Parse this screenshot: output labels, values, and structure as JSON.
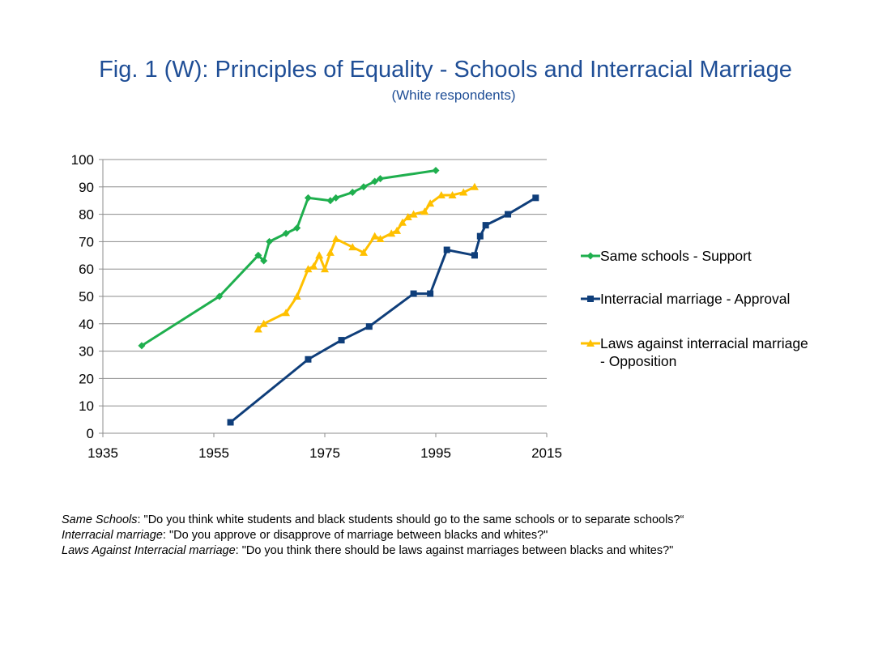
{
  "title": "Fig. 1 (W): Principles of Equality - Schools and Interracial Marriage",
  "subtitle": "(White respondents)",
  "colors": {
    "title": "#1f4e96",
    "same_schools": "#1faf4e",
    "marriage": "#0f3e7a",
    "laws": "#ffc000"
  },
  "chart_data": {
    "type": "line",
    "title": "Fig. 1 (W): Principles of Equality - Schools and Interracial Marriage",
    "subtitle": "(White respondents)",
    "xlabel": "",
    "ylabel": "",
    "xlim": [
      1935,
      2015
    ],
    "ylim": [
      0,
      100
    ],
    "x_ticks": [
      1935,
      1955,
      1975,
      1995,
      2015
    ],
    "y_ticks": [
      0,
      10,
      20,
      30,
      40,
      50,
      60,
      70,
      80,
      90,
      100
    ],
    "grid": true,
    "legend_position": "right",
    "series": [
      {
        "name": "Same schools - Support",
        "marker": "diamond",
        "color": "#1faf4e",
        "points": [
          [
            1942,
            32
          ],
          [
            1956,
            50
          ],
          [
            1963,
            65
          ],
          [
            1964,
            63
          ],
          [
            1965,
            70
          ],
          [
            1968,
            73
          ],
          [
            1970,
            75
          ],
          [
            1972,
            86
          ],
          [
            1976,
            85
          ],
          [
            1977,
            86
          ],
          [
            1980,
            88
          ],
          [
            1982,
            90
          ],
          [
            1984,
            92
          ],
          [
            1985,
            93
          ],
          [
            1995,
            96
          ]
        ]
      },
      {
        "name": "Interracial marriage - Approval",
        "marker": "square",
        "color": "#0f3e7a",
        "points": [
          [
            1958,
            4
          ],
          [
            1972,
            27
          ],
          [
            1978,
            34
          ],
          [
            1983,
            39
          ],
          [
            1991,
            51
          ],
          [
            1994,
            51
          ],
          [
            1997,
            67
          ],
          [
            2002,
            65
          ],
          [
            2003,
            72
          ],
          [
            2004,
            76
          ],
          [
            2008,
            80
          ],
          [
            2013,
            86
          ]
        ]
      },
      {
        "name": "Laws against interracial marriage - Opposition",
        "legend_lines": [
          "Laws against interracial marriage",
          "- Opposition"
        ],
        "marker": "triangle",
        "color": "#ffc000",
        "points": [
          [
            1963,
            38
          ],
          [
            1964,
            40
          ],
          [
            1968,
            44
          ],
          [
            1970,
            50
          ],
          [
            1972,
            60
          ],
          [
            1973,
            61
          ],
          [
            1974,
            65
          ],
          [
            1975,
            60
          ],
          [
            1976,
            66
          ],
          [
            1977,
            71
          ],
          [
            1980,
            68
          ],
          [
            1982,
            66
          ],
          [
            1984,
            72
          ],
          [
            1985,
            71
          ],
          [
            1987,
            73
          ],
          [
            1988,
            74
          ],
          [
            1989,
            77
          ],
          [
            1990,
            79
          ],
          [
            1991,
            80
          ],
          [
            1993,
            81
          ],
          [
            1994,
            84
          ],
          [
            1996,
            87
          ],
          [
            1998,
            87
          ],
          [
            2000,
            88
          ],
          [
            2002,
            90
          ]
        ]
      }
    ]
  },
  "footnotes": [
    {
      "term": "Same Schools",
      "text": ": \"Do you think white students and black students should go to the same schools or to separate schools?“"
    },
    {
      "term": "Interracial marriage",
      "text": ": \"Do you approve or disapprove of marriage between blacks and whites?\""
    },
    {
      "term": "Laws Against Interracial marriage",
      "text": ": \"Do you think there should be laws against marriages between blacks and whites?\""
    }
  ]
}
